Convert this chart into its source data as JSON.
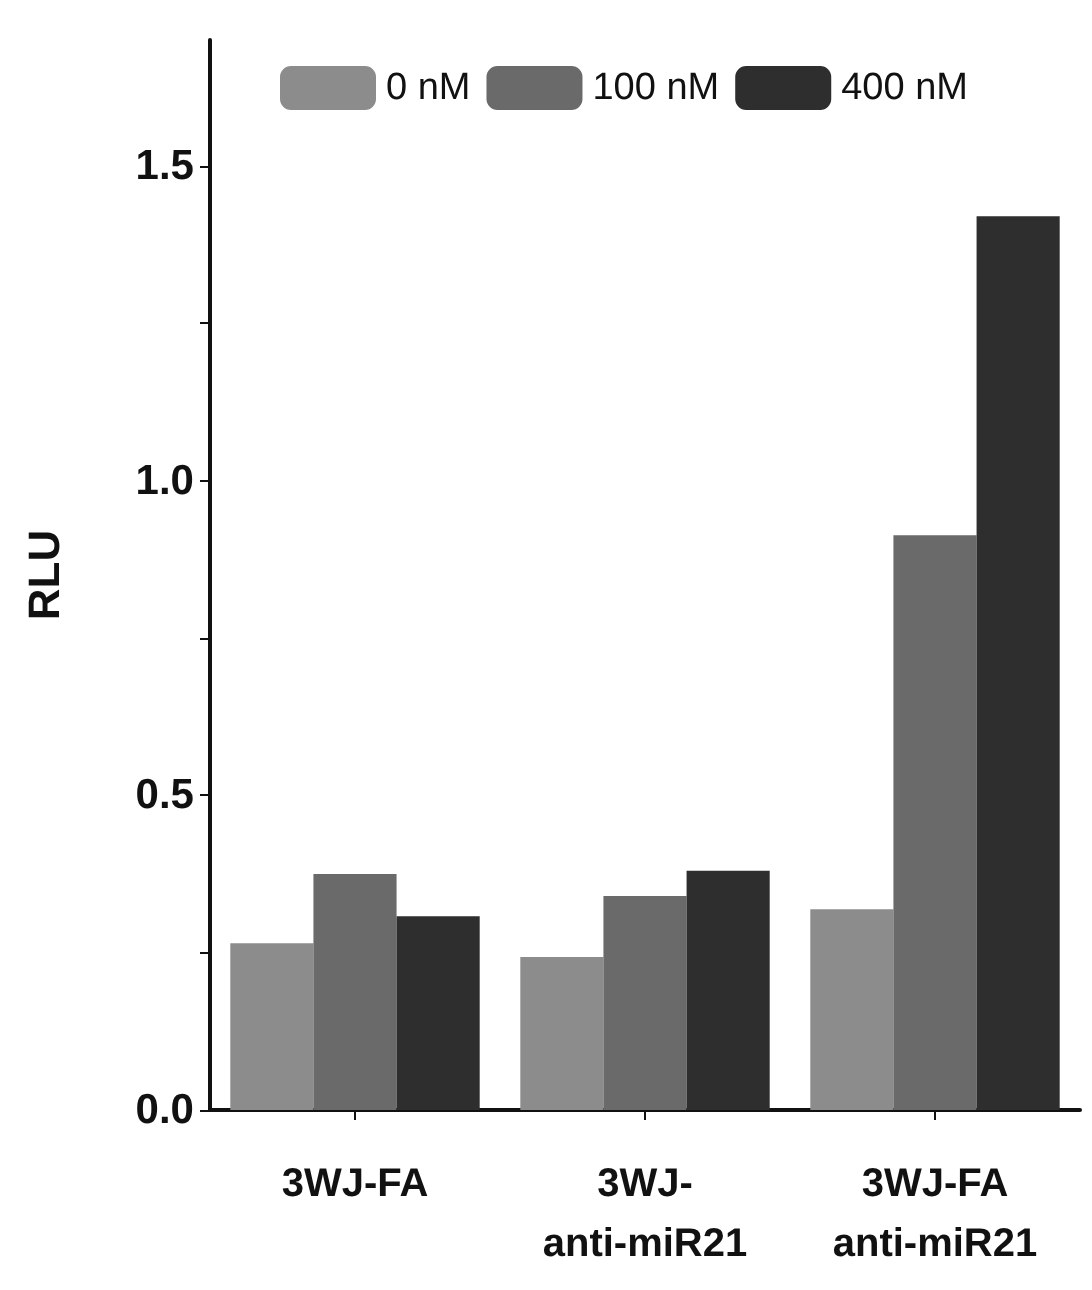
{
  "chart_data": {
    "type": "bar",
    "ylabel": "RLU",
    "categories": [
      "3WJ-FA",
      "3WJ-\nanti-miR21",
      "3WJ-FA\nanti-miR21"
    ],
    "series": [
      {
        "name": "0 nM",
        "color": "#8c8c8c",
        "values": [
          0.265,
          0.243,
          0.319
        ]
      },
      {
        "name": "100 nM",
        "color": "#6a6a6a",
        "values": [
          0.375,
          0.34,
          0.913
        ]
      },
      {
        "name": "400 nM",
        "color": "#2e2e2e",
        "values": [
          0.308,
          0.38,
          1.42
        ]
      }
    ],
    "ylim": [
      0,
      1.7
    ],
    "yticks": [
      {
        "value": 0,
        "label": "0.0"
      },
      {
        "value": 0.25,
        "label": null
      },
      {
        "value": 0.5,
        "label": "0.5"
      },
      {
        "value": 0.75,
        "label": null
      },
      {
        "value": 1,
        "label": "1.0"
      },
      {
        "value": 1.25,
        "label": null
      },
      {
        "value": 1.5,
        "label": "1.5"
      }
    ],
    "grid": false,
    "legend": "top"
  }
}
